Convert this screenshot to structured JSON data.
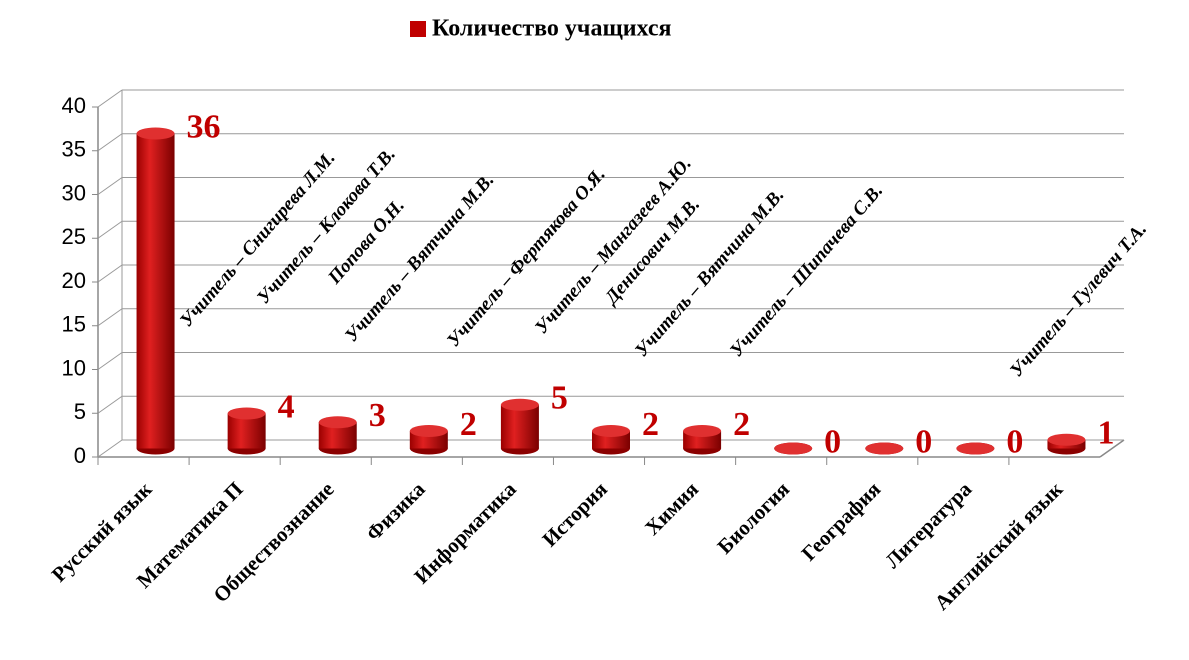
{
  "chart_data": {
    "type": "bar",
    "categories": [
      "Русский язык",
      "Математика П",
      "Обществознание",
      "Физика",
      "Информатика",
      "История",
      "Химия",
      "Биология",
      "География",
      "Литература",
      "Английский язык"
    ],
    "series": [
      {
        "name": "Количество учащихся",
        "color": "#c00000",
        "values": [
          36,
          4,
          3,
          2,
          5,
          2,
          2,
          0,
          0,
          0,
          1
        ]
      }
    ],
    "ylim": [
      0,
      40
    ],
    "yticks": [
      0,
      5,
      10,
      15,
      20,
      25,
      30,
      35,
      40
    ],
    "grid": true,
    "legend": "top",
    "annotations": [
      "Учитель – Снигирева Л.М.",
      "Учитель – Клокова Т.В.",
      "Попова О.Н.",
      "Учитель – Вятчина М.В.",
      "Учитель – Фертякова О.Я.",
      "Учитель – Мангазеев А.Ю.",
      "Денисович М.В.",
      "Учитель – Вятчина М.В.",
      "Учитель – Шипачева С.В.",
      "Учитель – Гулевич Т.А."
    ]
  }
}
